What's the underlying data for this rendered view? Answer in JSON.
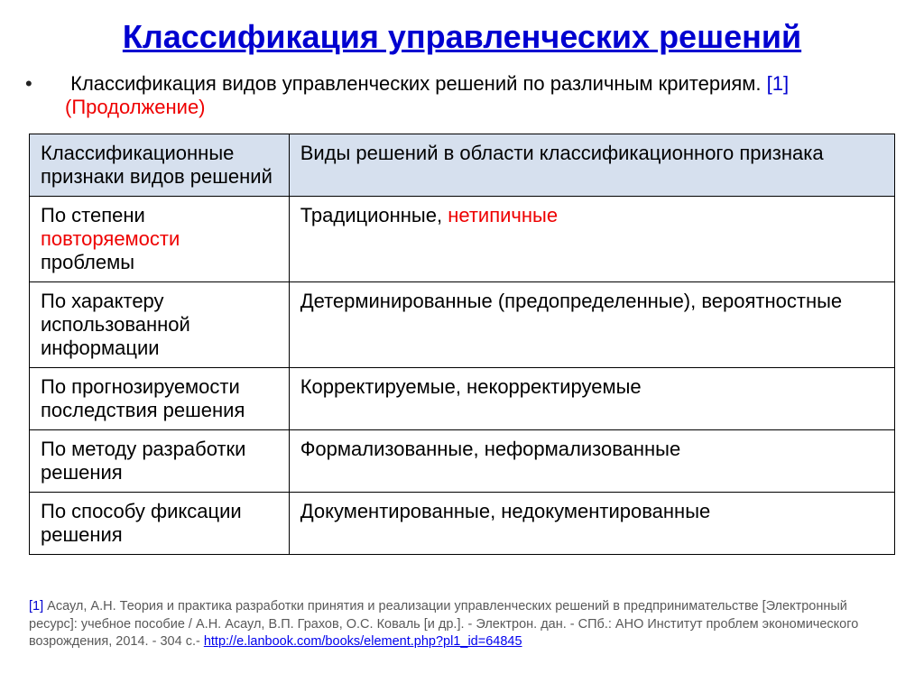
{
  "colors": {
    "title": "#0000d0",
    "ref": "#0000d0",
    "red": "#ee0000",
    "header_bg": "#d6e0ee",
    "footnote_num": "#0000d0",
    "link": "#0000ee"
  },
  "title": "Классификация управленческих решений",
  "intro": {
    "text1": "Классификация видов управленческих решений по различным критериям.",
    "ref": "[1]",
    "cont": "(Продолжение)"
  },
  "table": {
    "head_col1": "Классификационные признаки видов решений",
    "head_col2": "Виды решений в области  классификационного признака",
    "rows": [
      {
        "c1a": "По степени ",
        "c1b": "повторяемости",
        "c1c": " проблемы",
        "c2a": "Традиционные, ",
        "c2b": "нетипичные",
        "c2c": ""
      },
      {
        "c1a": "По характеру использованной информации",
        "c1b": "",
        "c1c": "",
        "c2a": "Детерминированные (предопределенные), вероятностные",
        "c2b": "",
        "c2c": ""
      },
      {
        "c1a": "По прогнозируемости последствия решения",
        "c1b": "",
        "c1c": "",
        "c2a": "Корректируемые, некорректируемые",
        "c2b": "",
        "c2c": ""
      },
      {
        "c1a": "По методу разработки решения",
        "c1b": "",
        "c1c": "",
        "c2a": "Формализованные, неформализованные",
        "c2b": "",
        "c2c": ""
      },
      {
        "c1a": "По способу фиксации решения",
        "c1b": "",
        "c1c": "",
        "c2a": "Документированные, недокументированные",
        "c2b": "",
        "c2c": ""
      }
    ]
  },
  "footnote": {
    "num": "[1]",
    "text": " Асаул, А.Н. Теория и практика разработки принятия и реализации управленческих решений в предпринимательстве [Электронный ресурс]: учебное пособие / А.Н. Асаул, В.П. Грахов, О.С. Коваль [и др.]. - Электрон. дан. - СПб.: АНО Институт проблем экономического возрождения, 2014. - 304 с.- ",
    "url": "http://e.lanbook.com/books/element.php?pl1_id=64845"
  }
}
